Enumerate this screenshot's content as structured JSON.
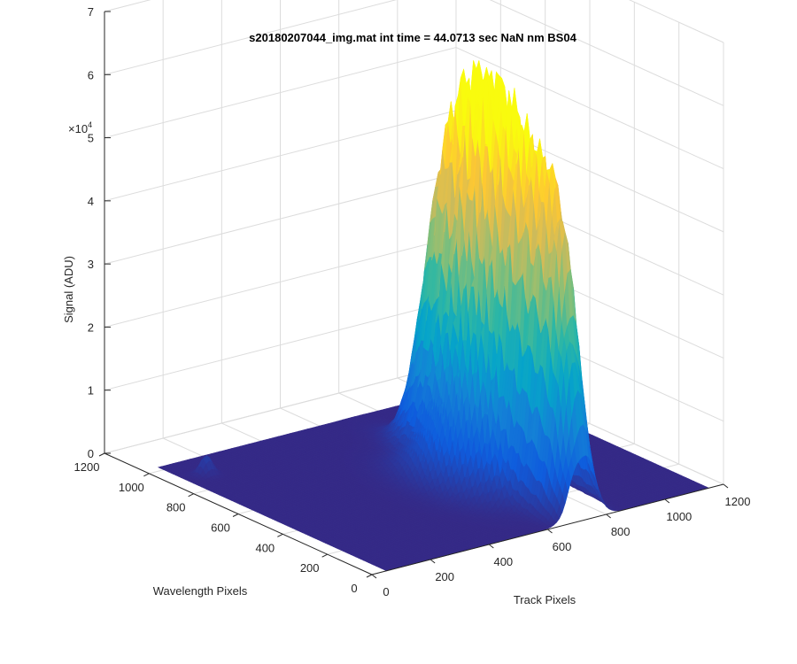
{
  "chart_data": {
    "type": "surface",
    "title": "s20180207044_img.mat int time = 44.0713 sec  NaN nm BS04",
    "xlabel": "Track Pixels",
    "ylabel": "Wavelength Pixels",
    "zlabel": "Signal (ADU)",
    "z_exponent_label": "×10",
    "z_exponent_power": "4",
    "xlim": [
      0,
      1200
    ],
    "ylim": [
      0,
      1200
    ],
    "zlim": [
      0,
      70000
    ],
    "x_ticks": [
      "0",
      "200",
      "400",
      "600",
      "800",
      "1000",
      "1200"
    ],
    "y_ticks": [
      "0",
      "200",
      "400",
      "600",
      "800",
      "1000",
      "1200"
    ],
    "z_ticks": [
      "0",
      "1",
      "2",
      "3",
      "4",
      "5",
      "6",
      "7"
    ],
    "x_tick_values": [
      0,
      200,
      400,
      600,
      800,
      1000,
      1200
    ],
    "y_tick_values": [
      0,
      200,
      400,
      600,
      800,
      1000,
      1200
    ],
    "z_tick_values": [
      0,
      10000,
      20000,
      30000,
      40000,
      50000,
      60000,
      70000
    ],
    "data_extent": {
      "x": [
        50,
        1150
      ],
      "y": [
        0,
        1024
      ]
    },
    "colormap": "parula",
    "colormap_colors": [
      "#352a87",
      "#0f5cdd",
      "#1481d6",
      "#06a4ca",
      "#2eb7a4",
      "#87bf77",
      "#d1bb59",
      "#fec832",
      "#f9fb0e"
    ],
    "peak_signal": 56000,
    "grid": true,
    "box": false
  }
}
